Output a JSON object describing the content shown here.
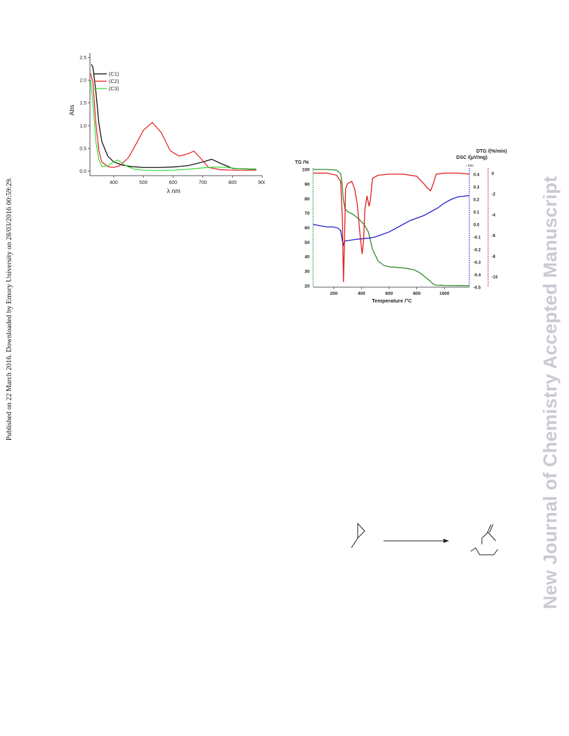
{
  "page": {
    "side_note": "Published on 22 March 2016. Downloaded by Emory University on 28/03/2016 00:59:29.",
    "watermark": "New Journal of Chemistry Accepted Manuscript"
  },
  "chart_data": [
    {
      "type": "line",
      "xlabel": "λ nm",
      "ylabel": "Abs",
      "xlim": [
        320,
        900
      ],
      "ylim": [
        -0.1,
        2.6
      ],
      "xticks": [
        400,
        500,
        600,
        700,
        800,
        900
      ],
      "yticks": [
        0.0,
        0.5,
        1.0,
        1.5,
        2.0,
        2.5
      ],
      "xtick_labels": [
        "400",
        "500",
        "600",
        "700",
        "800",
        "900"
      ],
      "ytick_labels": [
        "0.0",
        "0.5",
        "1.0",
        "1.5",
        "2.0",
        "2.5"
      ],
      "legend_position": "top-left",
      "series": [
        {
          "name": "(C1)",
          "color": "#000000",
          "x": [
            325,
            330,
            340,
            350,
            360,
            380,
            400,
            430,
            460,
            500,
            550,
            600,
            650,
            700,
            730,
            760,
            800,
            880
          ],
          "y": [
            2.35,
            2.28,
            1.75,
            1.05,
            0.65,
            0.33,
            0.2,
            0.13,
            0.1,
            0.08,
            0.08,
            0.09,
            0.12,
            0.2,
            0.26,
            0.17,
            0.06,
            0.04
          ]
        },
        {
          "name": "(C2)",
          "color": "#e41a1c",
          "x": [
            322,
            330,
            340,
            350,
            360,
            380,
            400,
            420,
            450,
            480,
            500,
            530,
            560,
            590,
            620,
            650,
            670,
            690,
            720,
            760,
            800,
            880
          ],
          "y": [
            2.15,
            1.95,
            1.05,
            0.45,
            0.2,
            0.1,
            0.08,
            0.12,
            0.3,
            0.65,
            0.9,
            1.07,
            0.85,
            0.45,
            0.33,
            0.38,
            0.44,
            0.3,
            0.08,
            0.03,
            0.02,
            0.02
          ]
        },
        {
          "name": "(C3)",
          "color": "#33dd33",
          "x": [
            322,
            330,
            340,
            350,
            360,
            380,
            400,
            410,
            420,
            440,
            470,
            500,
            550,
            600,
            650,
            700,
            740,
            780,
            830,
            880
          ],
          "y": [
            2.0,
            1.5,
            0.65,
            0.25,
            0.1,
            0.12,
            0.2,
            0.24,
            0.22,
            0.12,
            0.04,
            0.02,
            0.01,
            0.02,
            0.04,
            0.07,
            0.09,
            0.08,
            0.05,
            0.03
          ]
        }
      ]
    },
    {
      "type": "line",
      "xlabel": "Temperature /°C",
      "ylabel": "TG /%",
      "y2label": "DSC /(μV/mg)",
      "y3label": "DTG /(%/min)",
      "axis_note": "↓ exo",
      "xlim": [
        50,
        1180
      ],
      "ylim": [
        19,
        101
      ],
      "y2lim": [
        -0.5,
        0.45
      ],
      "y3lim": [
        -11,
        0.5
      ],
      "xticks": [
        200,
        400,
        600,
        800,
        1000
      ],
      "yticks": [
        20,
        30,
        40,
        50,
        60,
        70,
        80,
        90,
        100
      ],
      "y2ticks": [
        0.4,
        0.3,
        0.2,
        0.1,
        0.0,
        -0.1,
        -0.2,
        -0.3,
        -0.4,
        -0.5
      ],
      "y3ticks": [
        0,
        -2,
        -4,
        -6,
        -8,
        -10
      ],
      "xtick_labels": [
        "200",
        "400",
        "600",
        "800",
        "1000"
      ],
      "ytick_labels": [
        "20",
        "30",
        "40",
        "50",
        "60",
        "70",
        "80",
        "90",
        "100"
      ],
      "y2tick_labels": [
        "0.4",
        "0.3",
        "0.2",
        "0.1",
        "0.0",
        "-0.1",
        "-0.2",
        "-0.3",
        "-0.4",
        "-0.5"
      ],
      "y3tick_labels": [
        "0",
        "-2",
        "-4",
        "-6",
        "-8",
        "-10"
      ],
      "series": [
        {
          "axis": "y",
          "color": "#2e8b2e",
          "x": [
            50,
            150,
            220,
            250,
            260,
            268,
            280,
            300,
            340,
            380,
            420,
            450,
            480,
            520,
            560,
            600,
            700,
            780,
            820,
            860,
            900,
            920,
            940,
            1000,
            1100,
            1180
          ],
          "y": [
            100,
            100,
            99.5,
            97,
            90,
            80,
            73,
            71,
            69,
            66,
            62,
            57,
            45,
            37,
            34,
            33,
            32.3,
            31,
            29,
            26,
            23,
            21,
            20.4,
            20.2,
            20.1,
            20
          ]
        },
        {
          "axis": "y2",
          "color": "#1f1fd0",
          "x": [
            50,
            150,
            200,
            230,
            250,
            260,
            268,
            275,
            285,
            300,
            350,
            400,
            450,
            500,
            550,
            600,
            650,
            700,
            750,
            800,
            850,
            900,
            950,
            1000,
            1050,
            1100,
            1180
          ],
          "y": [
            0.0,
            -0.02,
            -0.02,
            -0.03,
            -0.05,
            -0.12,
            -0.17,
            -0.14,
            -0.13,
            -0.13,
            -0.12,
            -0.115,
            -0.11,
            -0.1,
            -0.08,
            -0.06,
            -0.03,
            0.0,
            0.03,
            0.05,
            0.07,
            0.1,
            0.13,
            0.17,
            0.2,
            0.22,
            0.23
          ]
        },
        {
          "axis": "y3",
          "color": "#e41a1c",
          "x": [
            50,
            150,
            220,
            250,
            262,
            270,
            278,
            285,
            300,
            330,
            350,
            370,
            390,
            405,
            415,
            425,
            440,
            455,
            465,
            480,
            520,
            600,
            700,
            800,
            850,
            880,
            900,
            920,
            940,
            1000,
            1100,
            1180
          ],
          "y": [
            0,
            0,
            -0.2,
            -0.8,
            -4.5,
            -10.5,
            -6,
            -1.5,
            -1,
            -0.8,
            -1.5,
            -3,
            -6,
            -7.8,
            -6.5,
            -3.5,
            -2.2,
            -3.2,
            -2.5,
            -0.5,
            -0.2,
            -0.1,
            -0.1,
            -0.3,
            -1,
            -1.5,
            -1.7,
            -1.0,
            -0.1,
            0,
            0,
            -0.1
          ]
        }
      ]
    }
  ]
}
